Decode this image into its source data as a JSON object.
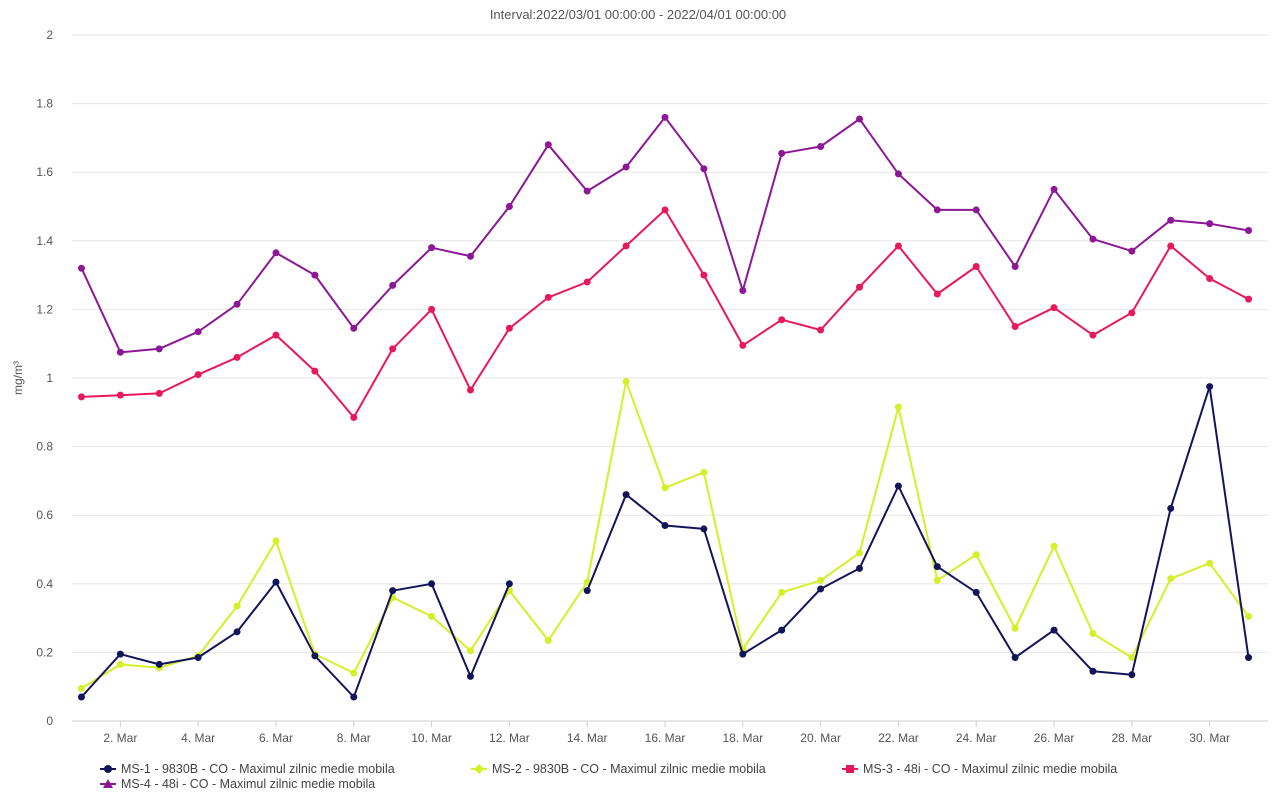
{
  "chart_data": {
    "type": "line",
    "title": "Interval:2022/03/01 00:00:00 - 2022/04/01 00:00:00",
    "ylabel": "mg/m³",
    "xlabel": "",
    "ylim": [
      0,
      2
    ],
    "yticks": [
      "0",
      "0.2",
      "0.4",
      "0.6",
      "0.8",
      "1",
      "1.2",
      "1.4",
      "1.6",
      "1.8",
      "2"
    ],
    "x": [
      1,
      2,
      3,
      4,
      5,
      6,
      7,
      8,
      9,
      10,
      11,
      12,
      13,
      14,
      15,
      16,
      17,
      18,
      19,
      20,
      21,
      22,
      23,
      24,
      25,
      26,
      27,
      28,
      29,
      30,
      31
    ],
    "xticks": [
      {
        "day": 2,
        "label": "2. Mar"
      },
      {
        "day": 4,
        "label": "4. Mar"
      },
      {
        "day": 6,
        "label": "6. Mar"
      },
      {
        "day": 8,
        "label": "8. Mar"
      },
      {
        "day": 10,
        "label": "10. Mar"
      },
      {
        "day": 12,
        "label": "12. Mar"
      },
      {
        "day": 14,
        "label": "14. Mar"
      },
      {
        "day": 16,
        "label": "16. Mar"
      },
      {
        "day": 18,
        "label": "18. Mar"
      },
      {
        "day": 20,
        "label": "20. Mar"
      },
      {
        "day": 22,
        "label": "22. Mar"
      },
      {
        "day": 24,
        "label": "24. Mar"
      },
      {
        "day": 26,
        "label": "26. Mar"
      },
      {
        "day": 28,
        "label": "28. Mar"
      },
      {
        "day": 30,
        "label": "30. Mar"
      }
    ],
    "grid": true,
    "legend_position": "bottom-left",
    "series": [
      {
        "name": "MS-1 - 9830B - CO - Maximul zilnic medie mobila",
        "color": "#14145a",
        "marker": "circle",
        "values": [
          0.07,
          0.195,
          0.165,
          0.185,
          0.26,
          0.405,
          0.19,
          0.07,
          0.38,
          0.4,
          0.13,
          0.4,
          null,
          0.38,
          0.66,
          0.57,
          0.56,
          0.195,
          0.265,
          0.385,
          0.445,
          0.685,
          0.45,
          0.375,
          0.185,
          0.265,
          0.145,
          0.135,
          0.62,
          0.975,
          0.185
        ]
      },
      {
        "name": "MS-2 - 9830B - CO - Maximul zilnic medie mobila",
        "color": "#d4f028",
        "marker": "diamond",
        "values": [
          0.095,
          0.165,
          0.155,
          0.19,
          0.335,
          0.525,
          0.195,
          0.14,
          0.36,
          0.305,
          0.205,
          0.38,
          0.235,
          0.405,
          0.99,
          0.68,
          0.725,
          0.21,
          0.375,
          0.41,
          0.49,
          0.915,
          0.41,
          0.485,
          0.27,
          0.51,
          0.255,
          0.185,
          0.415,
          0.46,
          0.305
        ]
      },
      {
        "name": "MS-3 - 48i - CO - Maximul zilnic medie mobila",
        "color": "#e8195a",
        "marker": "square",
        "values": [
          0.945,
          0.95,
          0.955,
          1.01,
          1.06,
          1.125,
          1.02,
          0.885,
          1.085,
          1.2,
          0.965,
          1.145,
          1.235,
          1.28,
          1.385,
          1.49,
          1.3,
          1.095,
          1.17,
          1.14,
          1.265,
          1.385,
          1.245,
          1.325,
          1.15,
          1.205,
          1.125,
          1.19,
          1.385,
          1.29,
          1.23
        ]
      },
      {
        "name": "MS-4 - 48i - CO - Maximul zilnic medie mobila",
        "color": "#8c1896",
        "marker": "triangle",
        "values": [
          1.32,
          1.075,
          1.085,
          1.135,
          1.215,
          1.365,
          1.3,
          1.145,
          1.27,
          1.38,
          1.355,
          1.5,
          1.68,
          1.545,
          1.615,
          1.76,
          1.61,
          1.255,
          1.655,
          1.675,
          1.755,
          1.595,
          1.49,
          1.49,
          1.325,
          1.55,
          1.405,
          1.37,
          1.46,
          1.45,
          1.43
        ]
      }
    ]
  }
}
